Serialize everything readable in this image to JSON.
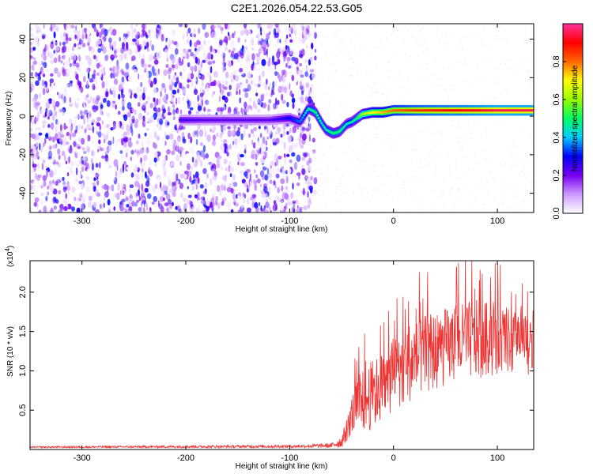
{
  "title": "C2E1.2026.054.22.53.G05",
  "colors": {
    "snr_line": "#ee3333",
    "axis": "#000000"
  },
  "chart_data": [
    {
      "type": "heatmap",
      "xlabel": "Height of straight line (km)",
      "ylabel": "Frequency (Hz)",
      "xlim": [
        -350,
        135
      ],
      "ylim": [
        -50,
        48
      ],
      "x_ticks": [
        -300,
        -200,
        -100,
        0,
        100
      ],
      "x_tick_labels": [
        "-300",
        "-200",
        "-100",
        "0",
        "100"
      ],
      "y_ticks": [
        -40,
        -20,
        0,
        20,
        40
      ],
      "y_tick_labels": [
        "-40",
        "-20",
        "0",
        "20",
        "40"
      ],
      "colorbar": {
        "label": "Normalized spectral amplitude",
        "range": [
          0,
          1
        ],
        "ticks": [
          0.0,
          0.2,
          0.4,
          0.6,
          0.8
        ],
        "tick_labels": [
          "0.0",
          "0.2",
          "0.4",
          "0.6",
          "0.8"
        ],
        "stops": [
          "#ffffff",
          "#cc99ff",
          "#7700ee",
          "#0000ff",
          "#00ccff",
          "#00ff66",
          "#99ff00",
          "#ffff00",
          "#ff6600",
          "#ff0000",
          "#ff3399"
        ]
      },
      "trace": {
        "x": [
          -205,
          -180,
          -160,
          -140,
          -120,
          -100,
          -90,
          -82,
          -75,
          -70,
          -65,
          -58,
          -52,
          -45,
          -40,
          -35,
          -30,
          -20,
          -10,
          0,
          20,
          40,
          60,
          80,
          100,
          120,
          135
        ],
        "y": [
          -2,
          -2,
          -2,
          -2,
          -2,
          -1,
          -3,
          4,
          2,
          -3,
          -7,
          -9,
          -8,
          -4,
          -3,
          -1,
          1,
          2,
          2,
          3,
          3,
          3,
          3,
          3,
          3,
          3,
          3
        ],
        "amplitude": [
          0.25,
          0.22,
          0.22,
          0.22,
          0.22,
          0.3,
          0.35,
          0.45,
          0.5,
          0.45,
          0.45,
          0.5,
          0.5,
          0.45,
          0.45,
          0.5,
          0.6,
          0.7,
          0.75,
          0.8,
          0.85,
          0.88,
          0.9,
          0.92,
          0.95,
          0.95,
          0.95
        ]
      },
      "noise_region_x": [
        -350,
        -75
      ]
    },
    {
      "type": "line",
      "xlabel": "Height of straight line (km)",
      "ylabel": "SNR (10 * v/v)",
      "y_scale_label": "(x10",
      "y_scale_exp": "4",
      "y_scale_close": ")",
      "xlim": [
        -350,
        135
      ],
      "ylim": [
        0,
        2.4
      ],
      "x_ticks": [
        -300,
        -200,
        -100,
        0,
        100
      ],
      "x_tick_labels": [
        "-300",
        "-200",
        "-100",
        "0",
        "100"
      ],
      "y_ticks": [
        0.5,
        1.0,
        1.5,
        2.0
      ],
      "y_tick_labels": [
        "0.5",
        "1.0",
        "1.5",
        "2.0"
      ],
      "envelope": {
        "x": [
          -350,
          -100,
          -60,
          -50,
          -45,
          -40,
          -35,
          -30,
          -20,
          -10,
          0,
          10,
          20,
          40,
          60,
          80,
          100,
          120,
          135
        ],
        "mean": [
          0.03,
          0.04,
          0.05,
          0.1,
          0.25,
          0.45,
          0.55,
          0.6,
          0.7,
          0.8,
          0.95,
          1.05,
          1.15,
          1.25,
          1.35,
          1.4,
          1.4,
          1.35,
          1.3
        ],
        "spread": [
          0.01,
          0.02,
          0.03,
          0.08,
          0.15,
          0.25,
          0.35,
          0.4,
          0.45,
          0.45,
          0.45,
          0.5,
          0.5,
          0.5,
          0.5,
          0.5,
          0.45,
          0.4,
          0.35
        ]
      }
    }
  ]
}
